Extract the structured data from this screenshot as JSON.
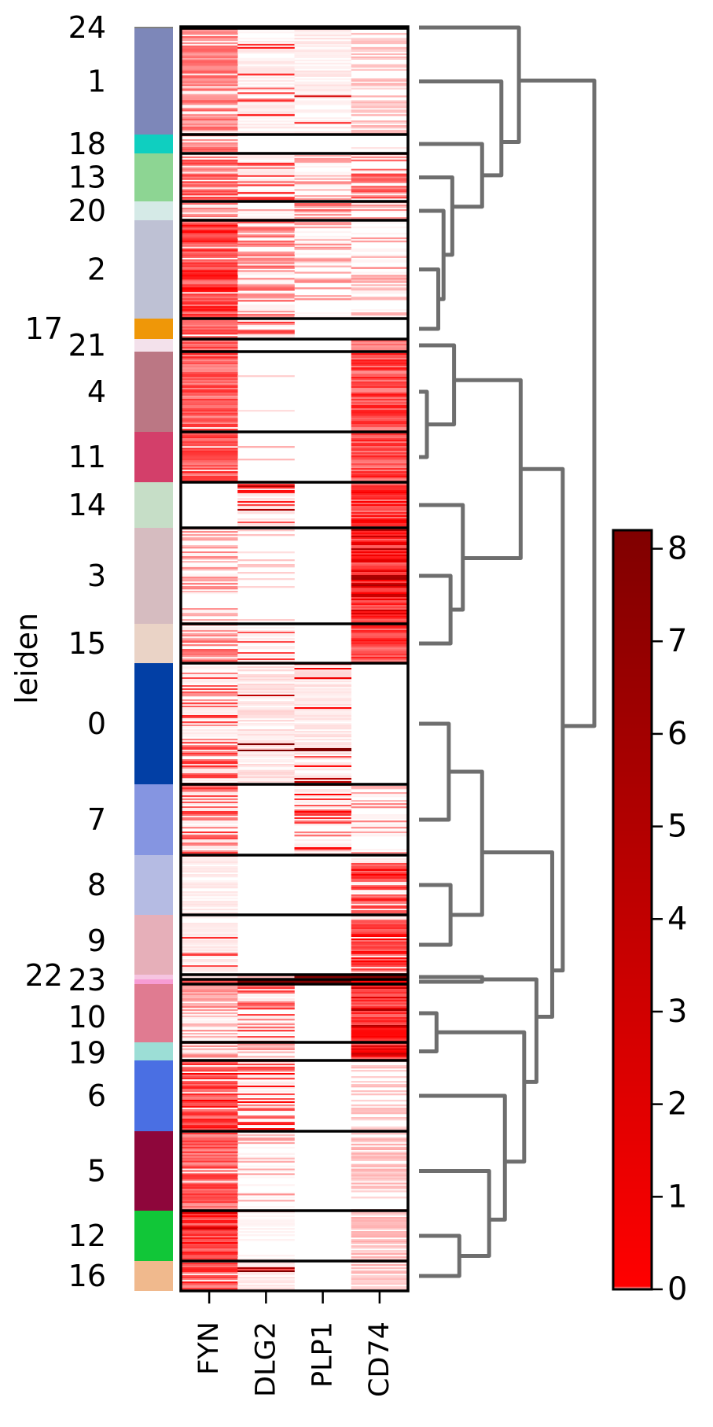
{
  "chart_data": {
    "type": "heatmap",
    "ylabel": "leiden",
    "genes": [
      "FYN",
      "DLG2",
      "PLP1",
      "CD74"
    ],
    "clusters": [
      {
        "label": "24",
        "color": "#7f7f7f",
        "relative_size": 2,
        "level": [
          0.3,
          0.2,
          0.0,
          0.0
        ],
        "fraction": [
          0.5,
          0.3,
          0.0,
          0.0
        ]
      },
      {
        "label": "1",
        "color": "#7d87b9",
        "relative_size": 135,
        "level": [
          0.4,
          0.6,
          0.7,
          0.2
        ],
        "fraction": [
          0.8,
          0.15,
          0.05,
          0.5
        ]
      },
      {
        "label": "18",
        "color": "#0fcfc0",
        "relative_size": 24,
        "level": [
          0.4,
          0.0,
          0.0,
          0.1
        ],
        "fraction": [
          0.7,
          0.0,
          0.0,
          0.1
        ]
      },
      {
        "label": "13",
        "color": "#8dd593",
        "relative_size": 61,
        "level": [
          0.5,
          0.6,
          0.3,
          0.5
        ],
        "fraction": [
          0.7,
          0.4,
          0.4,
          0.7
        ]
      },
      {
        "label": "20",
        "color": "#d5eae7",
        "relative_size": 24,
        "level": [
          0.4,
          0.3,
          0.4,
          0.3
        ],
        "fraction": [
          0.6,
          0.3,
          0.6,
          0.4
        ]
      },
      {
        "label": "2",
        "color": "#bec1d4",
        "relative_size": 125,
        "level": [
          0.6,
          0.4,
          0.3,
          0.3
        ],
        "fraction": [
          0.95,
          0.6,
          0.3,
          0.2
        ]
      },
      {
        "label": "17",
        "color": "#ef9708",
        "relative_size": 26,
        "level": [
          0.5,
          0.5,
          0.1,
          0.1
        ],
        "fraction": [
          0.9,
          0.3,
          0.1,
          0.1
        ]
      },
      {
        "label": "21",
        "color": "#f3e1eb",
        "relative_size": 16,
        "level": [
          0.5,
          0.0,
          0.0,
          0.5
        ],
        "fraction": [
          1.0,
          0.0,
          0.0,
          1.0
        ]
      },
      {
        "label": "4",
        "color": "#bb7784",
        "relative_size": 102,
        "level": [
          0.5,
          0.15,
          0.0,
          0.55
        ],
        "fraction": [
          0.95,
          0.05,
          0.0,
          1.0
        ]
      },
      {
        "label": "11",
        "color": "#d33f6a",
        "relative_size": 64,
        "level": [
          0.55,
          0.2,
          0.0,
          0.55
        ],
        "fraction": [
          0.95,
          0.1,
          0.0,
          1.0
        ]
      },
      {
        "label": "14",
        "color": "#c6dec7",
        "relative_size": 58,
        "level": [
          0.0,
          0.7,
          0.0,
          0.6
        ],
        "fraction": [
          0.0,
          0.3,
          0.0,
          1.0
        ]
      },
      {
        "label": "3",
        "color": "#d6bcc0",
        "relative_size": 122,
        "level": [
          0.3,
          0.15,
          0.0,
          0.7
        ],
        "fraction": [
          0.5,
          0.2,
          0.0,
          1.0
        ]
      },
      {
        "label": "15",
        "color": "#ead3c6",
        "relative_size": 50,
        "level": [
          0.4,
          0.5,
          0.0,
          0.6
        ],
        "fraction": [
          0.7,
          0.2,
          0.0,
          1.0
        ]
      },
      {
        "label": "0",
        "color": "#023fa5",
        "relative_size": 154,
        "level": [
          0.5,
          0.95,
          0.85,
          0.0
        ],
        "fraction": [
          0.3,
          0.03,
          0.15,
          0.0
        ]
      },
      {
        "label": "7",
        "color": "#8595e1",
        "relative_size": 90,
        "level": [
          0.5,
          0.0,
          0.6,
          0.3
        ],
        "fraction": [
          0.5,
          0.0,
          0.2,
          0.3
        ]
      },
      {
        "label": "8",
        "color": "#b5bbe3",
        "relative_size": 76,
        "level": [
          0.6,
          0.0,
          0.0,
          0.6
        ],
        "fraction": [
          0.05,
          0.0,
          0.0,
          0.8
        ]
      },
      {
        "label": "9",
        "color": "#e6afb9",
        "relative_size": 76,
        "level": [
          0.6,
          0.0,
          0.0,
          0.6
        ],
        "fraction": [
          0.05,
          0.0,
          0.0,
          0.9
        ]
      },
      {
        "label": "22",
        "color": "#f6c4e1",
        "relative_size": 6,
        "level": [
          0.1,
          0.2,
          1.0,
          1.0
        ],
        "fraction": [
          1.0,
          1.0,
          1.0,
          1.0
        ]
      },
      {
        "label": "23",
        "color": "#f79cd4",
        "relative_size": 6,
        "level": [
          0.5,
          1.0,
          1.0,
          1.0
        ],
        "fraction": [
          1.0,
          1.0,
          1.0,
          1.0
        ]
      },
      {
        "label": "10",
        "color": "#e07b91",
        "relative_size": 74,
        "level": [
          0.3,
          0.5,
          0.0,
          0.7
        ],
        "fraction": [
          0.6,
          0.4,
          0.0,
          1.0
        ]
      },
      {
        "label": "19",
        "color": "#9cded6",
        "relative_size": 23,
        "level": [
          0.3,
          0.3,
          0.0,
          0.7
        ],
        "fraction": [
          0.8,
          0.3,
          0.0,
          1.0
        ]
      },
      {
        "label": "6",
        "color": "#4a6fe3",
        "relative_size": 90,
        "level": [
          0.6,
          0.6,
          0.0,
          0.2
        ],
        "fraction": [
          0.9,
          0.4,
          0.0,
          0.4
        ]
      },
      {
        "label": "5",
        "color": "#8e063b",
        "relative_size": 101,
        "level": [
          0.5,
          0.3,
          0.0,
          0.2
        ],
        "fraction": [
          0.95,
          0.15,
          0.0,
          0.6
        ]
      },
      {
        "label": "12",
        "color": "#11c638",
        "relative_size": 64,
        "level": [
          0.65,
          0.3,
          0.0,
          0.2
        ],
        "fraction": [
          1.0,
          0.05,
          0.0,
          0.8
        ]
      },
      {
        "label": "16",
        "color": "#f0b98d",
        "relative_size": 38,
        "level": [
          0.55,
          0.8,
          0.0,
          0.2
        ],
        "fraction": [
          0.9,
          0.1,
          0.0,
          0.7
        ]
      }
    ],
    "dendrogram": {
      "h": 1.0,
      "c": [
        {
          "h": 0.57,
          "c": [
            "24",
            {
              "h": 0.47,
              "c": [
                "1",
                {
                  "h": 0.36,
                  "c": [
                    "18",
                    {
                      "h": 0.19,
                      "c": [
                        "13",
                        {
                          "h": 0.14,
                          "c": [
                            "20",
                            {
                              "h": 0.11,
                              "c": [
                                "2",
                                "17"
                              ]
                            }
                          ]
                        }
                      ]
                    }
                  ]
                }
              ]
            }
          ]
        },
        {
          "h": 0.82,
          "c": [
            {
              "h": 0.58,
              "c": [
                {
                  "h": 0.2,
                  "c": [
                    "21",
                    {
                      "h": 0.045,
                      "c": [
                        "4",
                        "11"
                      ]
                    }
                  ]
                },
                {
                  "h": 0.25,
                  "c": [
                    "14",
                    {
                      "h": 0.18,
                      "c": [
                        "3",
                        "15"
                      ]
                    }
                  ]
                }
              ]
            },
            {
              "h": 0.76,
              "c": [
                {
                  "h": 0.36,
                  "c": [
                    {
                      "h": 0.17,
                      "c": [
                        "0",
                        "7"
                      ]
                    },
                    {
                      "h": 0.18,
                      "c": [
                        "8",
                        "9"
                      ]
                    }
                  ]
                },
                {
                  "h": 0.67,
                  "c": [
                    {
                      "h": 0.36,
                      "c": [
                        "22",
                        "23"
                      ]
                    },
                    {
                      "h": 0.6,
                      "c": [
                        {
                          "h": 0.1,
                          "c": [
                            "10",
                            "19"
                          ]
                        },
                        {
                          "h": 0.49,
                          "c": [
                            "6",
                            {
                              "h": 0.4,
                              "c": [
                                "5",
                                {
                                  "h": 0.23,
                                  "c": [
                                    "12",
                                    "16"
                                  ]
                                }
                              ]
                            }
                          ]
                        }
                      ]
                    }
                  ]
                }
              ]
            }
          ]
        }
      ]
    },
    "colorbar": {
      "range": [
        0,
        8.2
      ],
      "ticks": [
        0,
        1,
        2,
        3,
        4,
        5,
        6,
        7,
        8
      ],
      "tick_labels": [
        "0",
        "1",
        "2",
        "3",
        "4",
        "5",
        "6",
        "7",
        "8"
      ],
      "colors": [
        "#ffffff",
        "#ff0000",
        "#800000"
      ]
    },
    "dendrogram_color": "#6e6e6e"
  }
}
